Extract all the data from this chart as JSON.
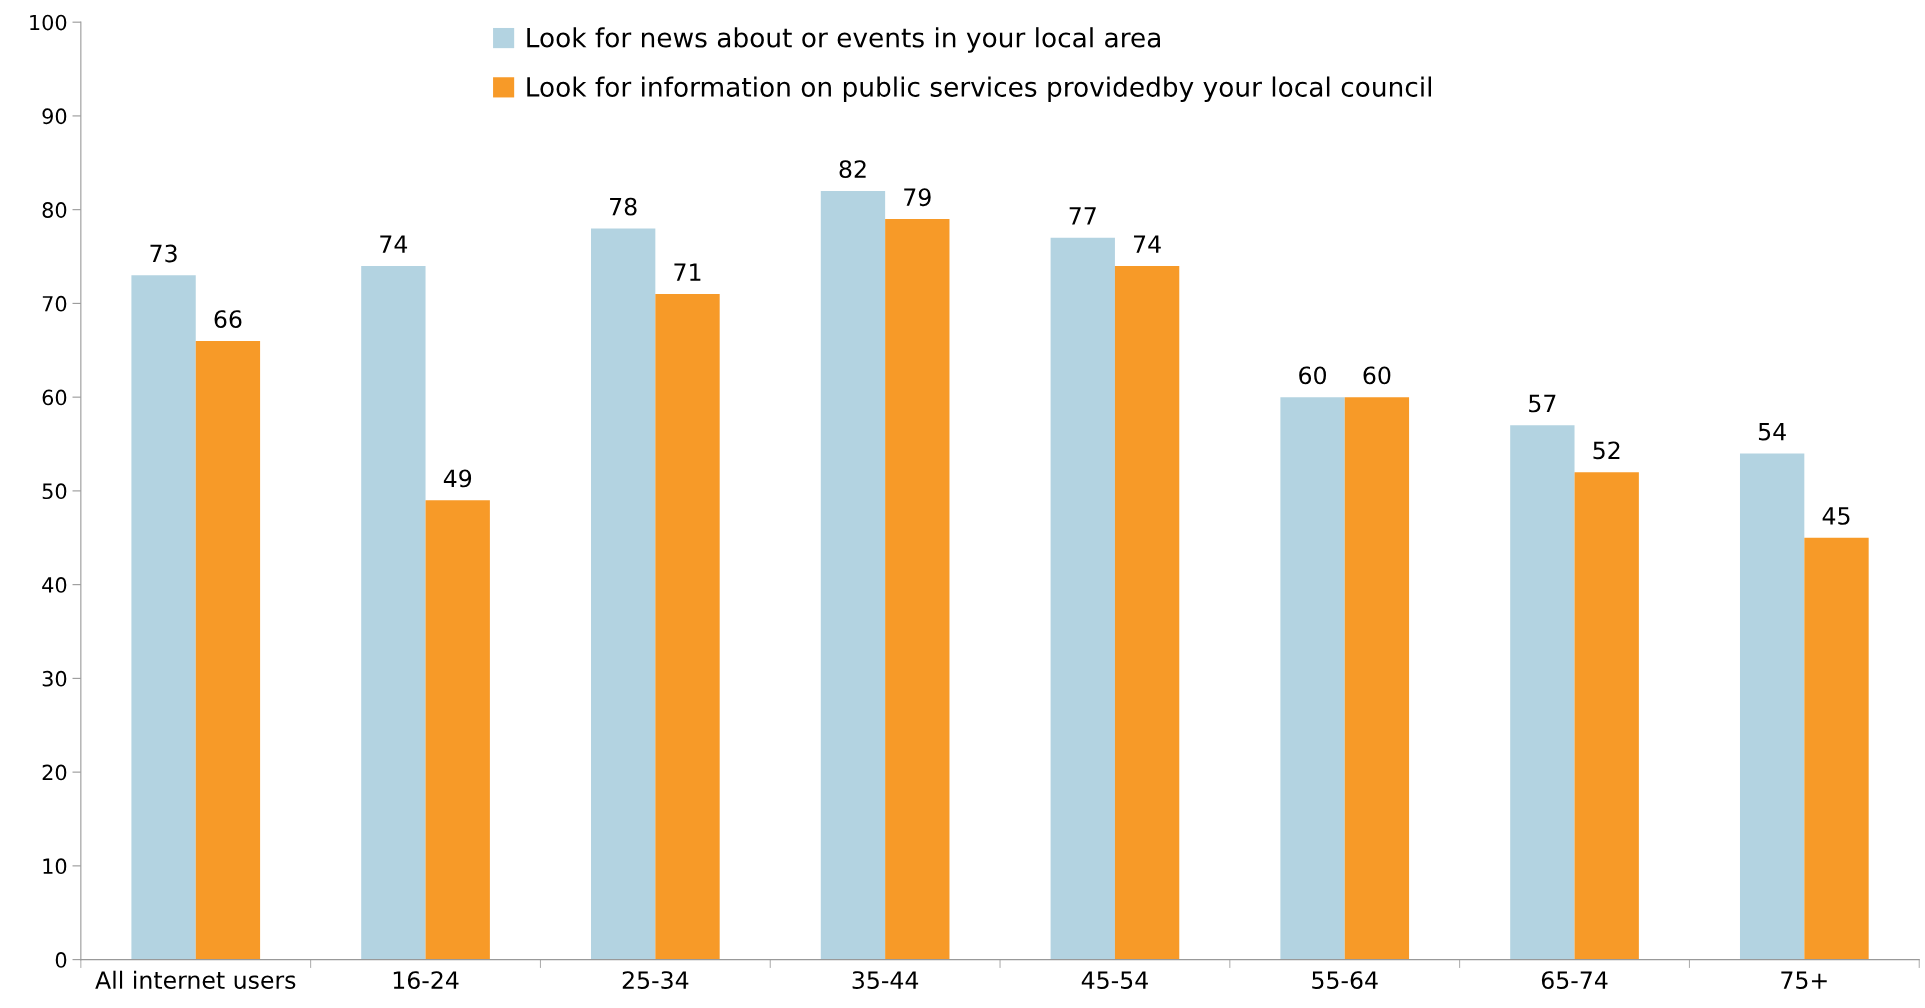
{
  "chart_data": {
    "type": "bar",
    "categories": [
      "All internet users",
      "16-24",
      "25-34",
      "35-44",
      "45-54",
      "55-64",
      "65-74",
      "75+"
    ],
    "series": [
      {
        "name": "Look for news about or events in your local area",
        "color": "#b3d3e1",
        "values": [
          73,
          74,
          78,
          82,
          77,
          60,
          57,
          54
        ]
      },
      {
        "name": "Look for information on public services providedby your local council",
        "color": "#f79a28",
        "values": [
          66,
          49,
          71,
          79,
          74,
          60,
          52,
          45
        ]
      }
    ],
    "ylim": [
      0,
      100
    ],
    "yticks": [
      0,
      10,
      20,
      30,
      40,
      50,
      60,
      70,
      80,
      90,
      100
    ],
    "grid": false,
    "legend": "top",
    "data_labels": true
  }
}
